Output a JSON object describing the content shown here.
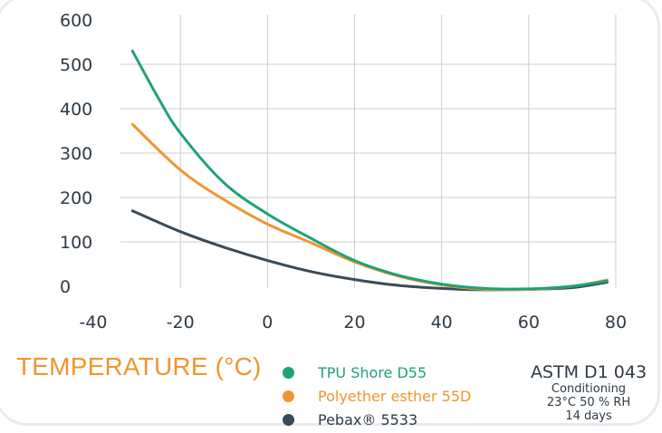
{
  "chart_data": {
    "type": "line",
    "xlabel": "TEMPERATURE (°C)",
    "ylabel": "",
    "xlim": [
      -40,
      80
    ],
    "ylim": [
      0,
      600
    ],
    "x_ticks": [
      "-40",
      "-20",
      "0",
      "20",
      "40",
      "60",
      "80"
    ],
    "y_ticks": [
      "0",
      "100",
      "200",
      "300",
      "400",
      "500",
      "600"
    ],
    "grid": "vertical",
    "legend_position": "bottom",
    "series": [
      {
        "name": "TPU Shore D55",
        "color": "#1da27a",
        "points": [
          [
            -31,
            530
          ],
          [
            -25,
            423
          ],
          [
            -20,
            345
          ],
          [
            -10,
            233
          ],
          [
            0,
            163
          ],
          [
            10,
            108
          ],
          [
            20,
            58
          ],
          [
            30,
            25
          ],
          [
            40,
            5
          ],
          [
            50,
            -5
          ],
          [
            60,
            -6
          ],
          [
            70,
            0
          ],
          [
            78,
            12
          ]
        ]
      },
      {
        "name": "Polyether esther 55D",
        "color": "#f0962e",
        "points": [
          [
            -31,
            365
          ],
          [
            -20,
            262
          ],
          [
            -10,
            195
          ],
          [
            0,
            140
          ],
          [
            10,
            98
          ],
          [
            20,
            55
          ],
          [
            30,
            23
          ],
          [
            40,
            3
          ],
          [
            50,
            -7
          ],
          [
            60,
            -7
          ],
          [
            70,
            0
          ],
          [
            78,
            14
          ]
        ]
      },
      {
        "name": "Pebax® 5533",
        "color": "#3a4a57",
        "points": [
          [
            -31,
            170
          ],
          [
            -20,
            123
          ],
          [
            -10,
            88
          ],
          [
            0,
            58
          ],
          [
            10,
            33
          ],
          [
            20,
            15
          ],
          [
            30,
            2
          ],
          [
            40,
            -5
          ],
          [
            50,
            -8
          ],
          [
            60,
            -7
          ],
          [
            70,
            -3
          ],
          [
            78,
            9
          ]
        ]
      }
    ]
  },
  "legend": {
    "items": [
      {
        "label": "TPU Shore D55",
        "color": "#1da27a",
        "text_color": "#1da27a"
      },
      {
        "label": "Polyether esther 55D",
        "color": "#f0962e",
        "text_color": "#f0962e"
      },
      {
        "label": "Pebax® 5533",
        "color": "#3a4a57",
        "text_color": "#2e3a45"
      }
    ]
  },
  "standard": {
    "title": "ASTM D1 043",
    "lines": [
      "Conditioning",
      "23°C 50 % RH",
      "14 days"
    ]
  }
}
